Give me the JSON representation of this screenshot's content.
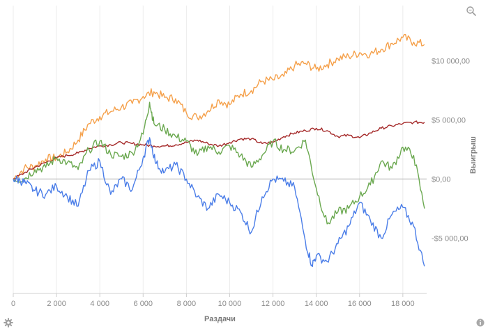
{
  "chart_data": {
    "type": "line",
    "xlabel": "Раздачи",
    "ylabel": "Выигрыш",
    "xlim": [
      0,
      19100
    ],
    "ylim": [
      -9700,
      14700
    ],
    "x_ticks": [
      0,
      2000,
      4000,
      6000,
      8000,
      10000,
      12000,
      14000,
      16000,
      18000
    ],
    "x_tick_labels": [
      "0",
      "2 000",
      "4 000",
      "6 000",
      "8 000",
      "10 000",
      "12 000",
      "14 000",
      "16 000",
      "18 000"
    ],
    "y_ticks": [
      10000,
      5000,
      0,
      -5000
    ],
    "y_tick_labels": [
      "$10 000,00",
      "$5 000,00",
      "$0,00",
      "-$5 000,00"
    ],
    "zero_line": 0,
    "grid": "vertical",
    "series": [
      {
        "color": "#f5a04a",
        "x": [
          0,
          500,
          1000,
          1500,
          2000,
          2500,
          3000,
          3500,
          4000,
          4500,
          5000,
          5500,
          6000,
          6500,
          7000,
          7500,
          8000,
          8500,
          9000,
          9500,
          10000,
          10500,
          11000,
          11500,
          12000,
          12500,
          13000,
          13500,
          14000,
          14500,
          15000,
          15500,
          16000,
          16500,
          17000,
          17500,
          18000,
          18500,
          19000
        ],
        "values": [
          0,
          900,
          1100,
          1700,
          1800,
          2300,
          3300,
          4700,
          5300,
          5700,
          6100,
          6400,
          7000,
          7400,
          6900,
          6800,
          5600,
          5200,
          5800,
          6700,
          6300,
          7200,
          7500,
          8300,
          8400,
          8700,
          9600,
          9800,
          9300,
          9700,
          10200,
          10400,
          10700,
          10600,
          11000,
          11500,
          12000,
          11600,
          11400
        ]
      },
      {
        "color": "#a52a2a",
        "x": [
          0,
          500,
          1000,
          1500,
          2000,
          2500,
          3000,
          3500,
          4000,
          4500,
          5000,
          5500,
          6000,
          6500,
          7000,
          7500,
          8000,
          8500,
          9000,
          9500,
          10000,
          10500,
          11000,
          11500,
          12000,
          12500,
          13000,
          13500,
          14000,
          14500,
          15000,
          15500,
          16000,
          16500,
          17000,
          17500,
          18000,
          18500,
          19000
        ],
        "values": [
          0,
          500,
          1000,
          1400,
          1800,
          2000,
          2200,
          2600,
          2800,
          2900,
          3100,
          3000,
          2900,
          2800,
          2800,
          2900,
          3100,
          3300,
          3000,
          2800,
          3100,
          3400,
          3400,
          3000,
          3100,
          3600,
          3900,
          4100,
          4300,
          4100,
          3600,
          3700,
          3500,
          3900,
          4300,
          4500,
          4700,
          4800,
          4800
        ]
      },
      {
        "color": "#6aa84f",
        "x": [
          0,
          500,
          1000,
          1500,
          2000,
          2500,
          3000,
          3500,
          4000,
          4500,
          5000,
          5500,
          6000,
          6300,
          6500,
          7000,
          7500,
          8000,
          8500,
          9000,
          9500,
          10000,
          10500,
          11000,
          11500,
          12000,
          12500,
          13000,
          13500,
          14000,
          14500,
          15000,
          15500,
          16000,
          16500,
          17000,
          17500,
          18000,
          18500,
          19000
        ],
        "values": [
          0,
          0,
          800,
          1000,
          1800,
          1400,
          800,
          2500,
          3200,
          2100,
          1900,
          2200,
          3800,
          6500,
          4700,
          4200,
          3600,
          3200,
          2000,
          2800,
          2300,
          2800,
          2000,
          1000,
          2000,
          3200,
          2500,
          2400,
          3300,
          -800,
          -3800,
          -2800,
          -2500,
          -1500,
          -500,
          1500,
          900,
          2700,
          2000,
          -2500
        ]
      },
      {
        "color": "#4a7de8",
        "x": [
          0,
          300,
          600,
          1000,
          1500,
          2000,
          2500,
          3000,
          3500,
          4000,
          4500,
          5000,
          5500,
          6000,
          6300,
          6600,
          7000,
          7500,
          8000,
          8500,
          9000,
          9500,
          10000,
          10500,
          11000,
          11500,
          12000,
          12500,
          13000,
          13500,
          13800,
          14000,
          14500,
          15000,
          15500,
          16000,
          16500,
          17000,
          17500,
          18000,
          18500,
          19000
        ],
        "values": [
          0,
          -100,
          -400,
          -1000,
          -1300,
          -600,
          -1500,
          -2300,
          700,
          1500,
          -1300,
          0,
          -900,
          1800,
          3500,
          1300,
          600,
          1200,
          0,
          -1500,
          -2500,
          -1300,
          -2000,
          -2800,
          -4500,
          -1500,
          0,
          -200,
          -700,
          -5300,
          -7300,
          -6500,
          -7000,
          -5500,
          -4000,
          -2000,
          -3500,
          -5000,
          -3000,
          -2400,
          -4000,
          -7400
        ]
      }
    ]
  },
  "icons": {
    "zoom": "magnifier-icon",
    "settings": "gear-icon",
    "info": "info-icon"
  }
}
